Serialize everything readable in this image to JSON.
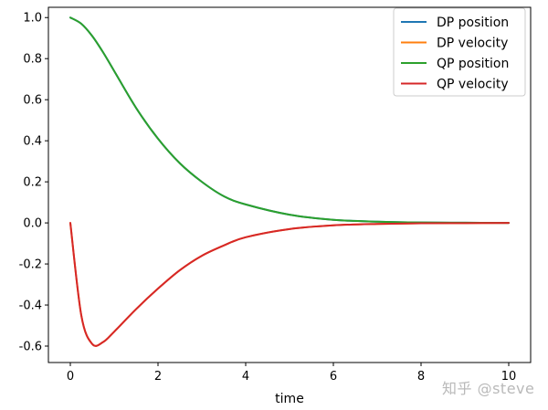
{
  "chart_data": {
    "type": "line",
    "title": "",
    "xlabel": "time",
    "ylabel": "",
    "xlim": [
      -0.5,
      10.5
    ],
    "ylim": [
      -0.68,
      1.05
    ],
    "xticks": [
      0,
      2,
      4,
      6,
      8,
      10
    ],
    "xtick_labels": [
      "0",
      "2",
      "4",
      "6",
      "8",
      "10"
    ],
    "yticks": [
      -0.6,
      -0.4,
      -0.2,
      0.0,
      0.2,
      0.4,
      0.6,
      0.8,
      1.0
    ],
    "ytick_labels": [
      "-0.6",
      "-0.4",
      "-0.2",
      "0.0",
      "0.2",
      "0.4",
      "0.6",
      "0.8",
      "1.0"
    ],
    "grid": false,
    "legend_position": "top-right",
    "x": [
      0,
      0.25,
      0.5,
      0.75,
      1,
      1.5,
      2,
      2.5,
      3,
      3.5,
      4,
      5,
      6,
      7,
      8,
      9,
      10
    ],
    "series": [
      {
        "name": "DP position",
        "color": "#1f77b4",
        "values": [
          1.0,
          0.97,
          0.91,
          0.83,
          0.74,
          0.56,
          0.41,
          0.29,
          0.2,
          0.13,
          0.09,
          0.04,
          0.015,
          0.006,
          0.002,
          0.001,
          0.0
        ]
      },
      {
        "name": "DP velocity",
        "color": "#ff7f0e",
        "values": [
          0.0,
          -0.45,
          -0.59,
          -0.58,
          -0.53,
          -0.42,
          -0.32,
          -0.23,
          -0.16,
          -0.11,
          -0.07,
          -0.03,
          -0.012,
          -0.005,
          -0.002,
          -0.001,
          0.0
        ]
      },
      {
        "name": "QP position",
        "color": "#2ca02c",
        "values": [
          1.0,
          0.97,
          0.91,
          0.83,
          0.74,
          0.56,
          0.41,
          0.29,
          0.2,
          0.13,
          0.09,
          0.04,
          0.015,
          0.006,
          0.002,
          0.001,
          0.0
        ]
      },
      {
        "name": "QP velocity",
        "color": "#d62728",
        "values": [
          0.0,
          -0.45,
          -0.59,
          -0.58,
          -0.53,
          -0.42,
          -0.32,
          -0.23,
          -0.16,
          -0.11,
          -0.07,
          -0.03,
          -0.012,
          -0.005,
          -0.002,
          -0.001,
          0.0
        ]
      }
    ]
  },
  "watermark": "知乎 @steve"
}
